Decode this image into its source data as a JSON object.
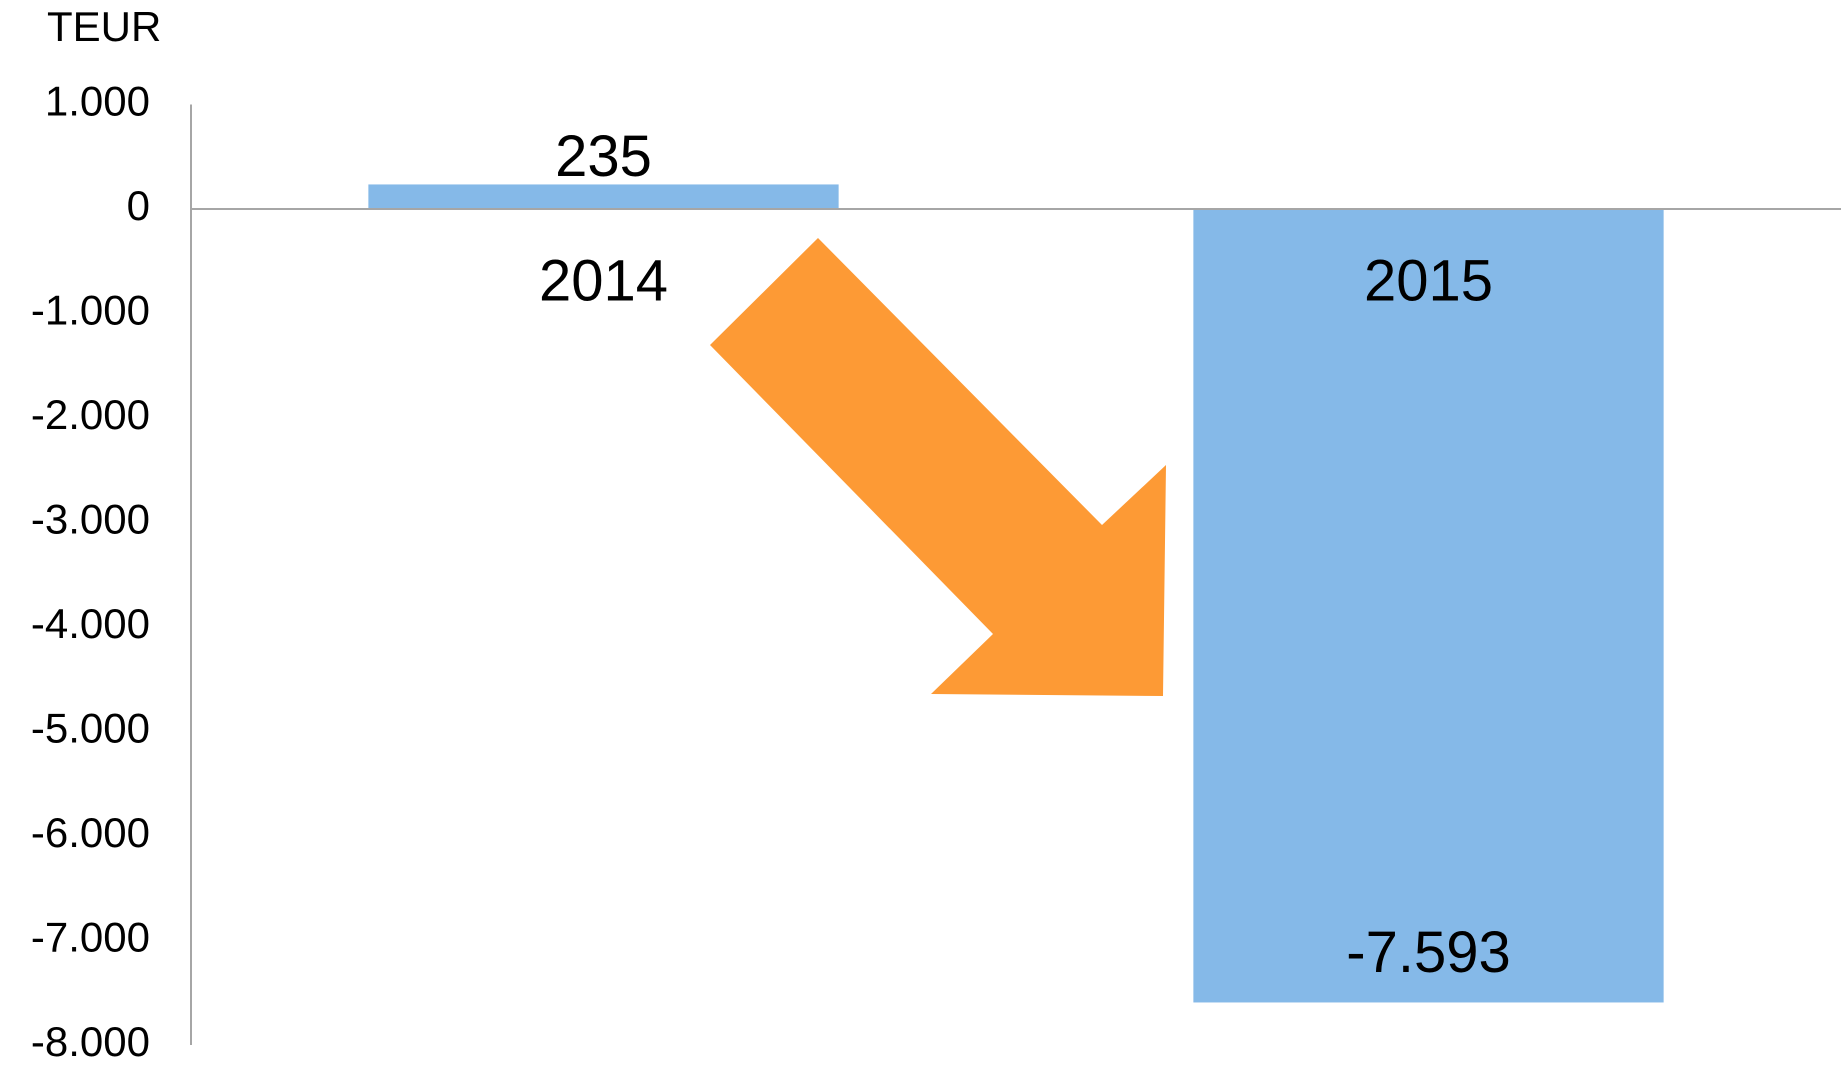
{
  "chart_data": {
    "type": "bar",
    "y_label": "TEUR",
    "categories": [
      "2014",
      "2015"
    ],
    "values": [
      235,
      -7593
    ],
    "value_labels": [
      "235",
      "-7.593"
    ],
    "color": "#85b9e8",
    "ylim": [
      -8000,
      1000
    ],
    "yticks": [
      {
        "value": 1000,
        "label": "1.000"
      },
      0,
      {
        "value": -1000,
        "label": "-1.000"
      },
      {
        "value": -2000,
        "label": "-2.000"
      },
      {
        "value": -3000,
        "label": "-3.000"
      },
      {
        "value": -4000,
        "label": "-4.000"
      },
      {
        "value": -5000,
        "label": "-5.000"
      },
      {
        "value": -6000,
        "label": "-6.000"
      },
      {
        "value": -7000,
        "label": "-7.000"
      },
      {
        "value": -8000,
        "label": "-8.000"
      }
    ],
    "grid": false
  }
}
